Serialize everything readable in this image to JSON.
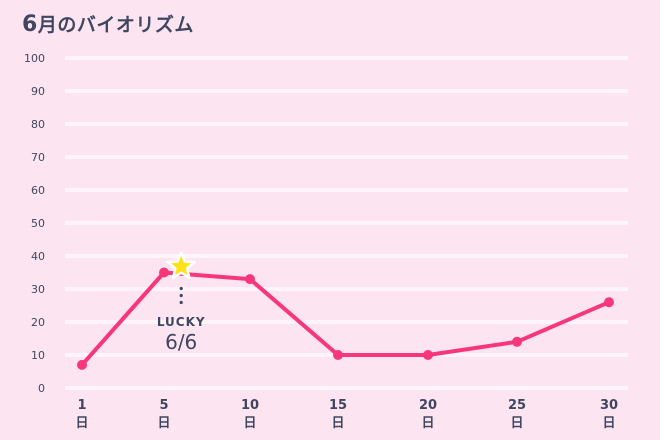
{
  "header": {
    "title_num": "6",
    "title_text": "月のバイオリズム"
  },
  "annotation": {
    "icon": "star-icon",
    "label": "LUCKY",
    "date": "6/6"
  },
  "colors": {
    "background": "#fde4f1",
    "line": "#f7377a",
    "star": "#fde21a",
    "text": "#3f4760",
    "grid": "#fff4fa"
  },
  "chart_data": {
    "type": "line",
    "title": "6月のバイオリズム",
    "xlabel": "",
    "ylabel": "",
    "ylim": [
      0,
      100
    ],
    "yticks": [
      0,
      10,
      20,
      30,
      40,
      50,
      60,
      70,
      80,
      90,
      100
    ],
    "grid": true,
    "legend": "none",
    "categories": [
      "1日",
      "5日",
      "10日",
      "15日",
      "20日",
      "25日",
      "30日"
    ],
    "x": [
      1,
      5,
      10,
      15,
      20,
      25,
      30
    ],
    "series": [
      {
        "name": "バイオリズム",
        "values": [
          7,
          35,
          33,
          10,
          10,
          14,
          26
        ]
      }
    ],
    "annotations": [
      {
        "x": 6,
        "y": 35,
        "marker": "star",
        "text": "LUCKY 6/6"
      }
    ]
  }
}
